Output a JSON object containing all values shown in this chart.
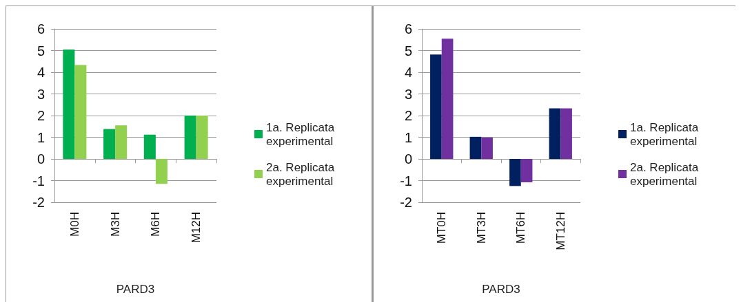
{
  "chart_data": [
    {
      "type": "bar",
      "categories": [
        "M0H",
        "M3H",
        "M6H",
        "M12H"
      ],
      "xlabel": "PARD3",
      "series": [
        {
          "name": "1a. Replicata experimental",
          "color": "#00b050",
          "values": [
            5.05,
            1.38,
            1.12,
            2.0
          ]
        },
        {
          "name": "2a. Replicata experimental",
          "color": "#92d050",
          "values": [
            4.33,
            1.55,
            -1.15,
            2.0
          ]
        }
      ],
      "ylim": [
        -2,
        6
      ],
      "yticks": [
        -2,
        -1,
        0,
        1,
        2,
        3,
        4,
        5,
        6
      ],
      "grid": "y",
      "legend": "right"
    },
    {
      "type": "bar",
      "categories": [
        "MT0H",
        "MT3H",
        "MT6H",
        "MT12H"
      ],
      "xlabel": "PARD3",
      "series": [
        {
          "name": "1a. Replicata experimental",
          "color": "#002060",
          "values": [
            4.82,
            1.02,
            -1.25,
            2.33
          ]
        },
        {
          "name": "2a. Replicata experimental",
          "color": "#7030a0",
          "values": [
            5.55,
            0.99,
            -1.08,
            2.33
          ]
        }
      ],
      "ylim": [
        -2,
        6
      ],
      "yticks": [
        -2,
        -1,
        0,
        1,
        2,
        3,
        4,
        5,
        6
      ],
      "grid": "y",
      "legend": "right"
    }
  ]
}
